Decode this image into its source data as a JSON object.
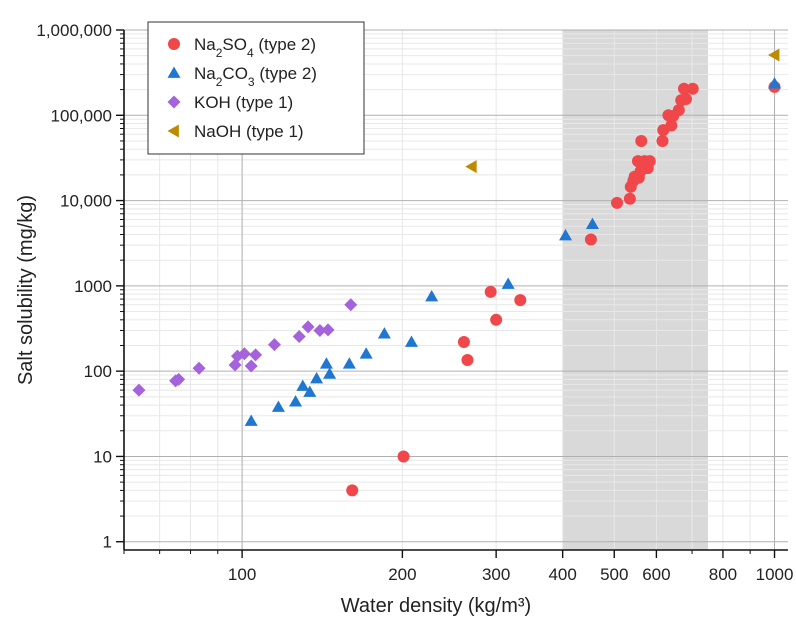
{
  "chart_data": {
    "type": "scatter",
    "xlabel": "Water density (kg/m³)",
    "ylabel": "Salt solubility (mg/kg)",
    "xscale": "log",
    "yscale": "log",
    "xlim": [
      60,
      1060
    ],
    "ylim": [
      0.8,
      1000000
    ],
    "x_ticks": [
      100,
      200,
      300,
      400,
      500,
      600,
      800,
      1000
    ],
    "y_ticks": [
      1,
      10,
      100,
      1000,
      10000,
      100000,
      1000000
    ],
    "y_tick_labels": [
      "1",
      "10",
      "100",
      "1000",
      "10,000",
      "100,000",
      "1,000,000"
    ],
    "shaded_region": {
      "x_from": 400,
      "x_to": 750
    },
    "grid": true,
    "legend_position": "top-left",
    "series": [
      {
        "name": "Na2SO4 (type 2)",
        "legend_parts": [
          "Na",
          "2",
          "SO",
          "4",
          " (type 2)"
        ],
        "marker": "circle",
        "color": "#f0474a",
        "points": [
          [
            161,
            4
          ],
          [
            201,
            10
          ],
          [
            261,
            220
          ],
          [
            265,
            135
          ],
          [
            293,
            850
          ],
          [
            300,
            400
          ],
          [
            333,
            680
          ],
          [
            452,
            3500
          ],
          [
            506,
            9400
          ],
          [
            535,
            10500
          ],
          [
            537,
            14500
          ],
          [
            543,
            17000
          ],
          [
            546,
            19000
          ],
          [
            554,
            29000
          ],
          [
            556,
            18500
          ],
          [
            560,
            22000
          ],
          [
            562,
            50000
          ],
          [
            566,
            27000
          ],
          [
            570,
            29000
          ],
          [
            578,
            24000
          ],
          [
            583,
            29000
          ],
          [
            616,
            50000
          ],
          [
            618,
            67000
          ],
          [
            632,
            100000
          ],
          [
            640,
            76000
          ],
          [
            645,
            98000
          ],
          [
            661,
            115000
          ],
          [
            668,
            150000
          ],
          [
            676,
            205000
          ],
          [
            682,
            155000
          ],
          [
            702,
            205000
          ],
          [
            1000,
            215000
          ]
        ]
      },
      {
        "name": "Na2CO3 (type 2)",
        "legend_parts": [
          "Na",
          "2",
          "CO",
          "3",
          " (type 2)"
        ],
        "marker": "triangle",
        "color": "#1f77d0",
        "points": [
          [
            104,
            26
          ],
          [
            117,
            38
          ],
          [
            126,
            44
          ],
          [
            130,
            67
          ],
          [
            134,
            57
          ],
          [
            138,
            82
          ],
          [
            144,
            122
          ],
          [
            146,
            93
          ],
          [
            159,
            122
          ],
          [
            171,
            160
          ],
          [
            185,
            275
          ],
          [
            208,
            220
          ],
          [
            227,
            750
          ],
          [
            316,
            1050
          ],
          [
            405,
            3900
          ],
          [
            455,
            5300
          ],
          [
            1000,
            235000
          ]
        ]
      },
      {
        "name": "KOH  (type 1)",
        "legend_parts": [
          "KOH  (type 1)"
        ],
        "marker": "diamond",
        "color": "#a463dd",
        "points": [
          [
            64,
            60
          ],
          [
            75,
            77
          ],
          [
            76,
            80
          ],
          [
            83,
            108
          ],
          [
            97,
            118
          ],
          [
            98,
            150
          ],
          [
            101,
            160
          ],
          [
            104,
            115
          ],
          [
            106,
            155
          ],
          [
            115,
            205
          ],
          [
            128,
            255
          ],
          [
            133,
            330
          ],
          [
            140,
            300
          ],
          [
            145,
            305
          ],
          [
            160,
            600
          ]
        ]
      },
      {
        "name": "NaOH  (type 1)",
        "legend_parts": [
          "NaOH  (type 1)"
        ],
        "marker": "left-triangle",
        "color": "#c08a00",
        "points": [
          [
            270,
            25000
          ],
          [
            1000,
            510000
          ]
        ]
      }
    ]
  }
}
